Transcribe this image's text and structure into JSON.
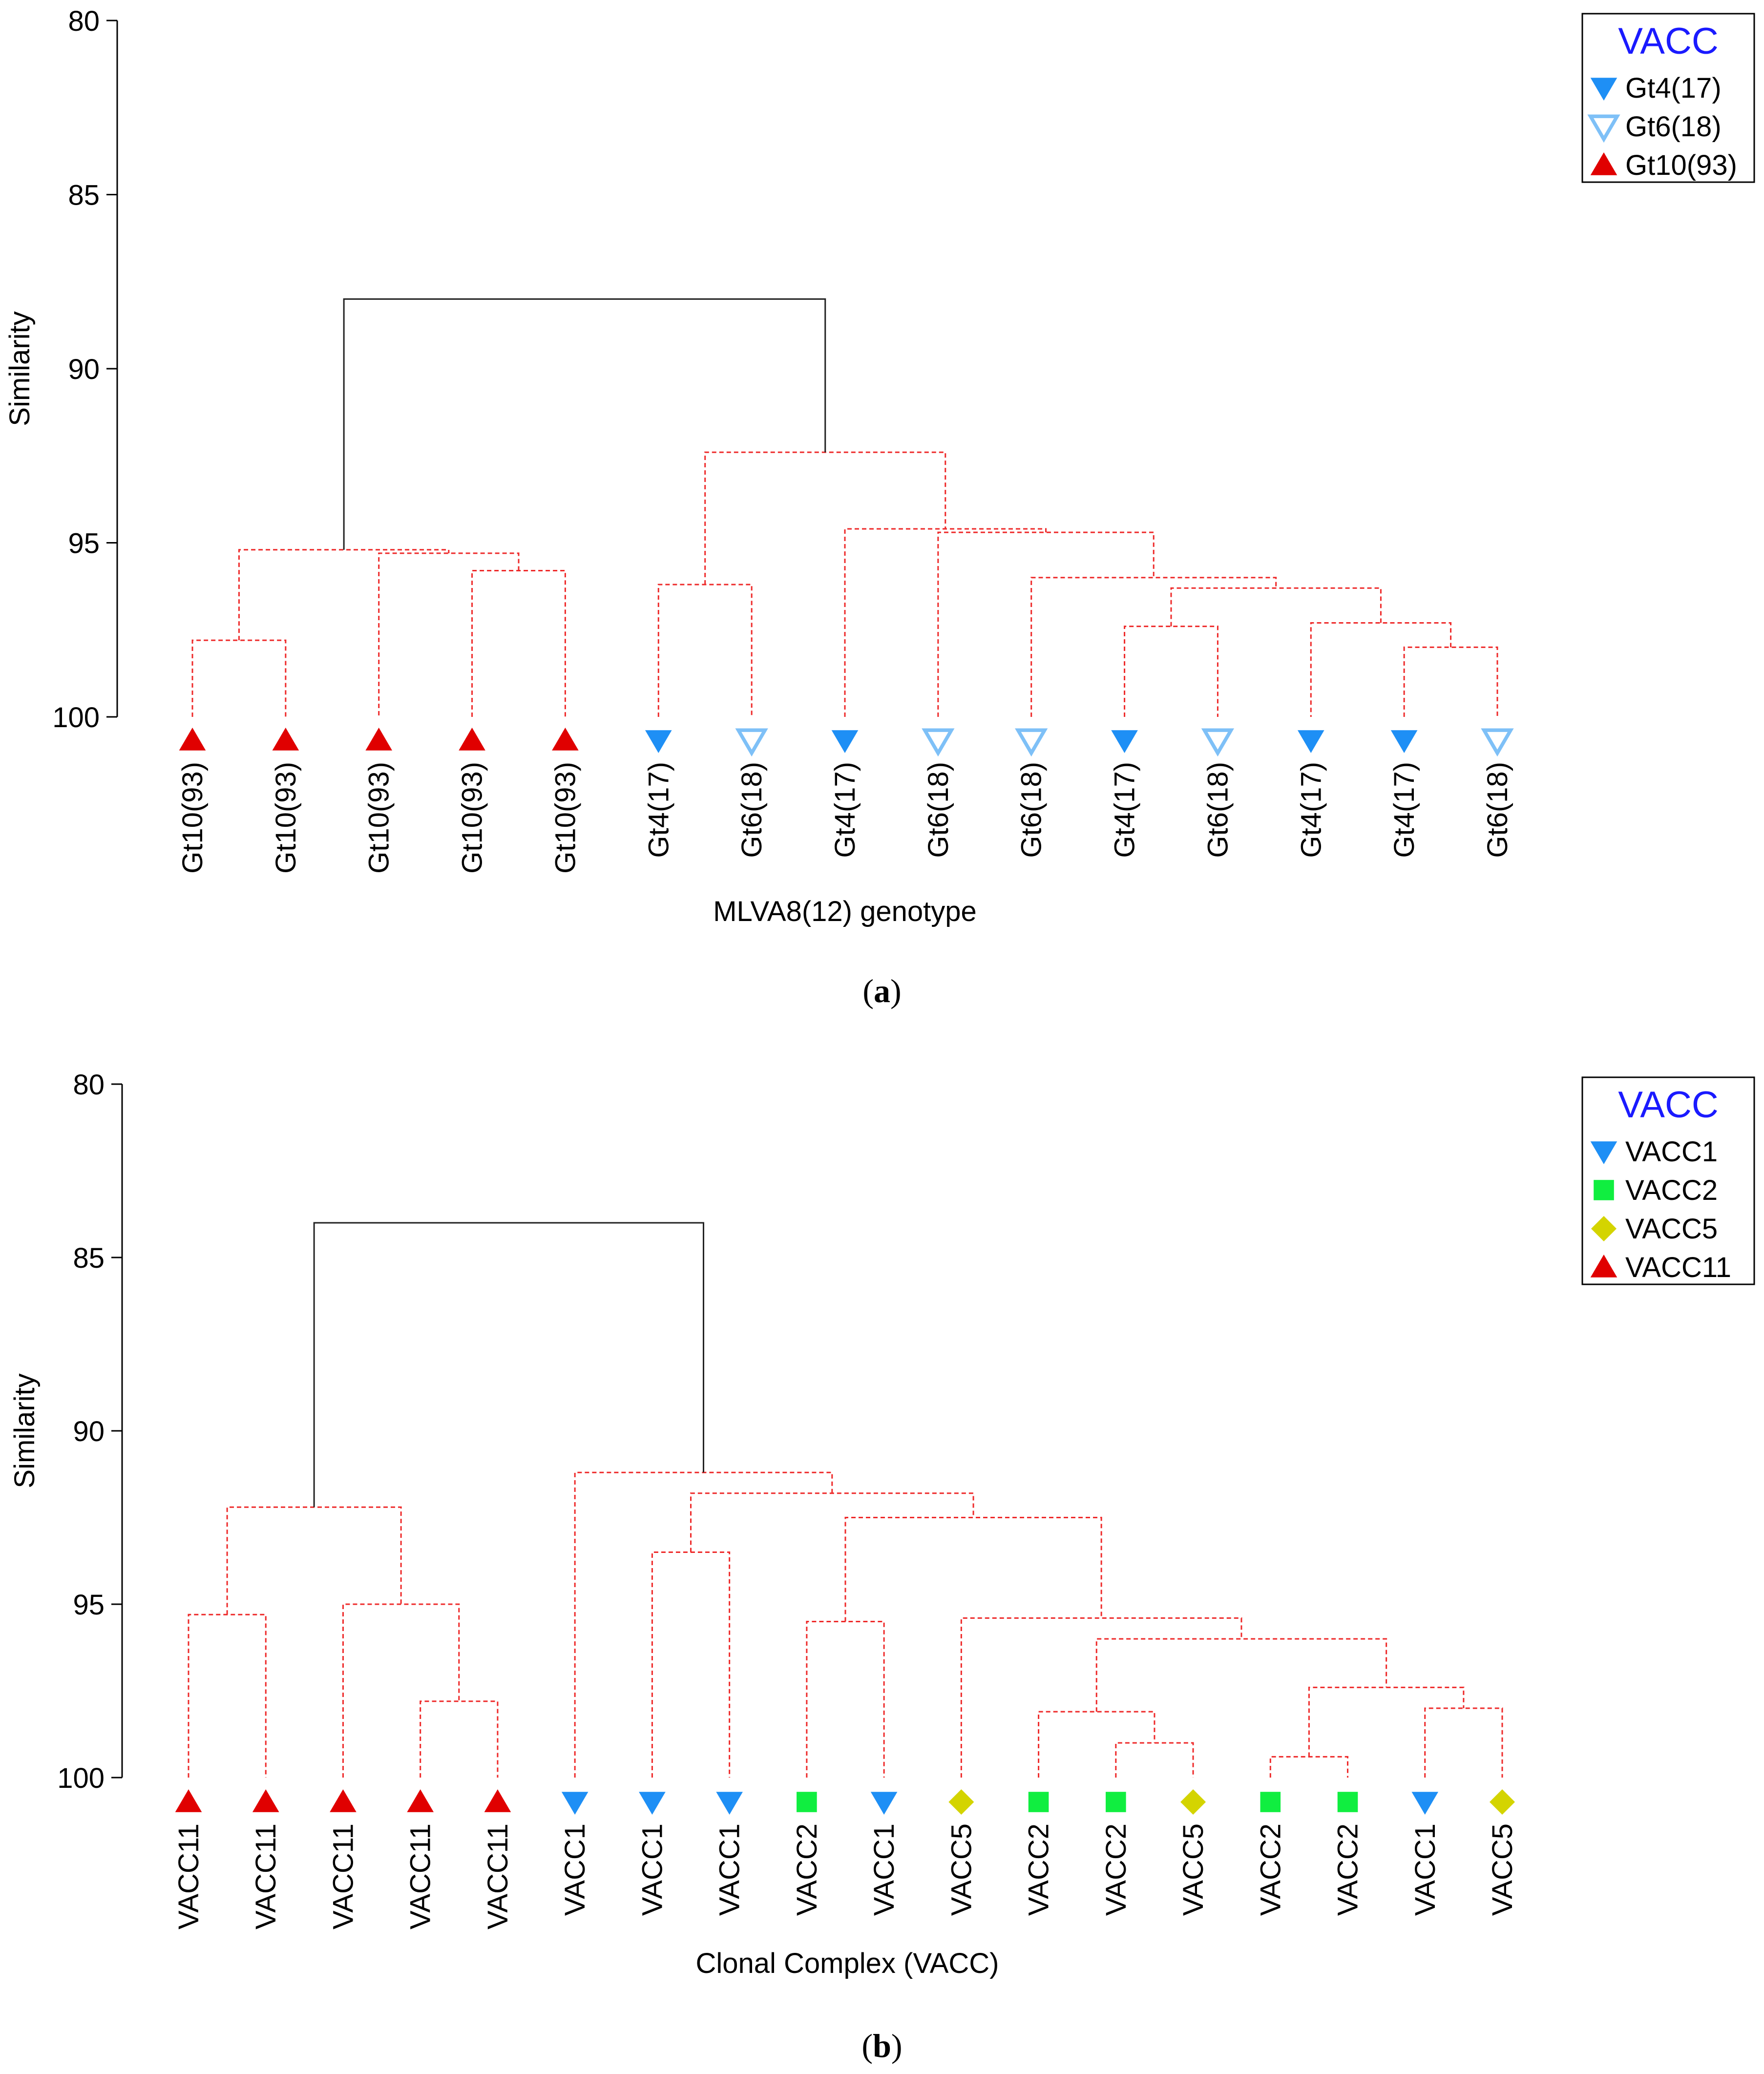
{
  "panels": [
    {
      "caption_open": "(",
      "caption_letter": "a",
      "caption_close": ")"
    },
    {
      "caption_open": "(",
      "caption_letter": "b",
      "caption_close": ")"
    }
  ],
  "chart_data": [
    {
      "type": "dendrogram",
      "ylabel": "Similarity",
      "xlabel": "MLVA8(12) genotype",
      "ylim": [
        80,
        100
      ],
      "yticks": [
        80,
        85,
        90,
        95,
        100
      ],
      "legend": {
        "title": "VACC",
        "placement": "top-right",
        "entries": [
          {
            "label": "Gt4(17)",
            "symbol": "tri-down-filled",
            "color": "#1e8ff5"
          },
          {
            "label": "Gt6(18)",
            "symbol": "tri-down-open",
            "color": "#7ec0f7"
          },
          {
            "label": "Gt10(93)",
            "symbol": "tri-up-filled",
            "color": "#e00000"
          }
        ]
      },
      "leaves": [
        {
          "label": "Gt10(93)",
          "group": 2
        },
        {
          "label": "Gt10(93)",
          "group": 2
        },
        {
          "label": "Gt10(93)",
          "group": 2
        },
        {
          "label": "Gt10(93)",
          "group": 2
        },
        {
          "label": "Gt10(93)",
          "group": 2
        },
        {
          "label": "Gt4(17)",
          "group": 0
        },
        {
          "label": "Gt6(18)",
          "group": 1
        },
        {
          "label": "Gt4(17)",
          "group": 0
        },
        {
          "label": "Gt6(18)",
          "group": 1
        },
        {
          "label": "Gt6(18)",
          "group": 1
        },
        {
          "label": "Gt4(17)",
          "group": 0
        },
        {
          "label": "Gt6(18)",
          "group": 1
        },
        {
          "label": "Gt4(17)",
          "group": 0
        },
        {
          "label": "Gt4(17)",
          "group": 0
        },
        {
          "label": "Gt6(18)",
          "group": 1
        }
      ],
      "merges": [
        {
          "a": 0,
          "b": 1,
          "sim": 97.8
        },
        {
          "a": 3,
          "b": 4,
          "sim": 95.8
        },
        {
          "a": "n1",
          "b": 2,
          "sim": 95.3
        },
        {
          "a": "n0",
          "b": "n2",
          "sim": 95.2
        },
        {
          "a": 5,
          "b": 6,
          "sim": 96.2
        },
        {
          "a": 10,
          "b": 11,
          "sim": 97.4
        },
        {
          "a": 13,
          "b": 14,
          "sim": 98.0
        },
        {
          "a": "n6",
          "b": 12,
          "sim": 97.3
        },
        {
          "a": "n5",
          "b": "n7",
          "sim": 96.3
        },
        {
          "a": 9,
          "b": "n8",
          "sim": 96.0
        },
        {
          "a": 8,
          "b": "n9",
          "sim": 94.7
        },
        {
          "a": 7,
          "b": "n10",
          "sim": 94.6
        },
        {
          "a": "n4",
          "b": "n11",
          "sim": 92.4
        },
        {
          "a": "n3",
          "b": "n12",
          "sim": 88.0
        }
      ]
    },
    {
      "type": "dendrogram",
      "ylabel": "Similarity",
      "xlabel": "Clonal Complex (VACC)",
      "ylim": [
        80,
        100
      ],
      "yticks": [
        80,
        85,
        90,
        95,
        100
      ],
      "legend": {
        "title": "VACC",
        "placement": "top-right",
        "entries": [
          {
            "label": "VACC1",
            "symbol": "tri-down-filled",
            "color": "#1e8ff5"
          },
          {
            "label": "VACC2",
            "symbol": "square",
            "color": "#10ee40"
          },
          {
            "label": "VACC5",
            "symbol": "diamond",
            "color": "#d4d400"
          },
          {
            "label": "VACC11",
            "symbol": "tri-up-filled",
            "color": "#e00000"
          }
        ]
      },
      "leaves": [
        {
          "label": "VACC11",
          "group": 3
        },
        {
          "label": "VACC11",
          "group": 3
        },
        {
          "label": "VACC11",
          "group": 3
        },
        {
          "label": "VACC11",
          "group": 3
        },
        {
          "label": "VACC11",
          "group": 3
        },
        {
          "label": "VACC1",
          "group": 0
        },
        {
          "label": "VACC1",
          "group": 0
        },
        {
          "label": "VACC1",
          "group": 0
        },
        {
          "label": "VACC2",
          "group": 1
        },
        {
          "label": "VACC1",
          "group": 0
        },
        {
          "label": "VACC5",
          "group": 2
        },
        {
          "label": "VACC2",
          "group": 1
        },
        {
          "label": "VACC2",
          "group": 1
        },
        {
          "label": "VACC5",
          "group": 2
        },
        {
          "label": "VACC2",
          "group": 1
        },
        {
          "label": "VACC2",
          "group": 1
        },
        {
          "label": "VACC1",
          "group": 0
        },
        {
          "label": "VACC5",
          "group": 2
        }
      ],
      "merges": [
        {
          "a": 0,
          "b": 1,
          "sim": 95.3
        },
        {
          "a": 3,
          "b": 4,
          "sim": 97.8
        },
        {
          "a": 2,
          "b": "n1",
          "sim": 95.0
        },
        {
          "a": "n0",
          "b": "n2",
          "sim": 92.2
        },
        {
          "a": 6,
          "b": 7,
          "sim": 93.5
        },
        {
          "a": 8,
          "b": 9,
          "sim": 95.5
        },
        {
          "a": 12,
          "b": 13,
          "sim": 99.0
        },
        {
          "a": 11,
          "b": "n6",
          "sim": 98.1
        },
        {
          "a": 14,
          "b": 15,
          "sim": 99.4
        },
        {
          "a": 16,
          "b": 17,
          "sim": 98.0
        },
        {
          "a": "n8",
          "b": "n9",
          "sim": 97.4
        },
        {
          "a": "n7",
          "b": "n10",
          "sim": 96.0
        },
        {
          "a": 10,
          "b": "n11",
          "sim": 95.4
        },
        {
          "a": "n5",
          "b": "n12",
          "sim": 92.5
        },
        {
          "a": "n4",
          "b": "n13",
          "sim": 91.8
        },
        {
          "a": 5,
          "b": "n14",
          "sim": 91.2
        },
        {
          "a": "n3",
          "b": "n15",
          "sim": 84.0
        }
      ]
    }
  ]
}
